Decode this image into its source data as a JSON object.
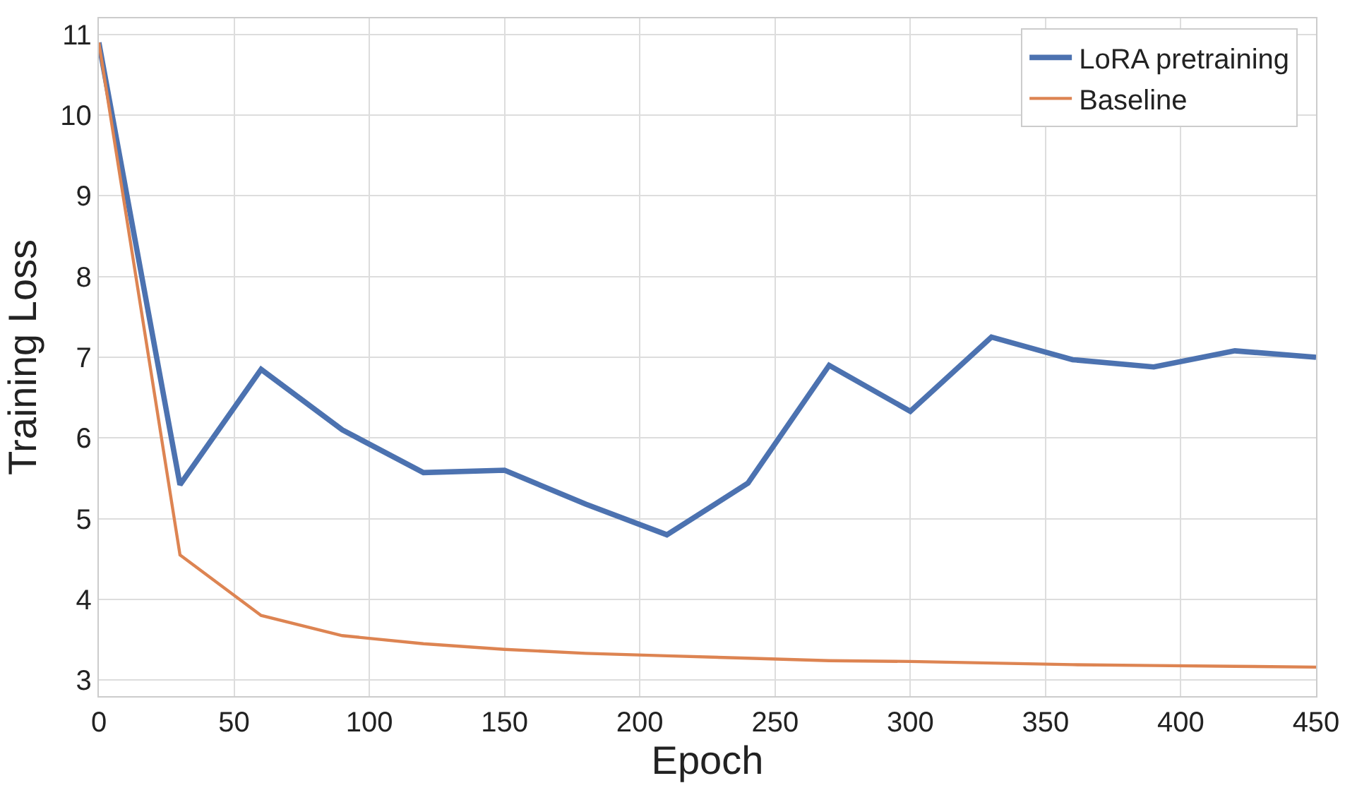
{
  "chart_data": {
    "type": "line",
    "xlabel": "Epoch",
    "ylabel": "Training Loss",
    "x": [
      0,
      30,
      60,
      90,
      120,
      150,
      180,
      210,
      240,
      270,
      300,
      330,
      360,
      390,
      420,
      450
    ],
    "series": [
      {
        "name": "LoRA pretraining",
        "color": "#4c72b0",
        "values": [
          10.9,
          5.42,
          6.85,
          6.1,
          5.57,
          5.6,
          5.18,
          4.8,
          5.44,
          6.9,
          6.33,
          7.25,
          6.97,
          6.88,
          7.08,
          7.0
        ]
      },
      {
        "name": "Baseline",
        "color": "#dd8452",
        "values": [
          10.9,
          4.55,
          3.8,
          3.55,
          3.45,
          3.38,
          3.33,
          3.3,
          3.27,
          3.24,
          3.23,
          3.21,
          3.19,
          3.18,
          3.17,
          3.16
        ]
      }
    ],
    "xlim": [
      0,
      450
    ],
    "xticks": [
      0,
      50,
      100,
      150,
      200,
      250,
      300,
      350,
      400,
      450
    ],
    "ylim": [
      2.8,
      11.2
    ],
    "yticks": [
      3,
      4,
      5,
      6,
      7,
      8,
      9,
      10,
      11
    ],
    "grid": true,
    "legend": "top right",
    "marker": "none",
    "line_style": "solid"
  }
}
